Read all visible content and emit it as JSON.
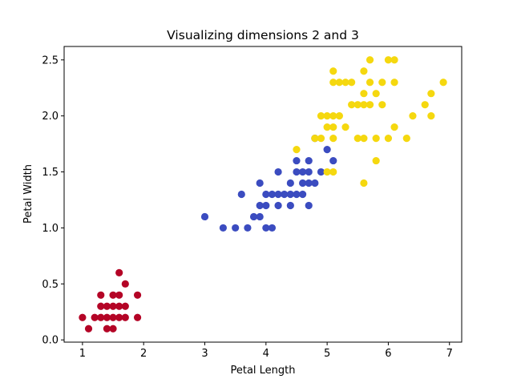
{
  "chart_data": {
    "type": "scatter",
    "title": "Visualizing dimensions 2 and 3",
    "xlabel": "Petal Length",
    "ylabel": "Petal Width",
    "xlim": [
      0.7,
      7.2
    ],
    "ylim": [
      -0.02,
      2.62
    ],
    "xticks": [
      1,
      2,
      3,
      4,
      5,
      6,
      7
    ],
    "yticks": [
      0.0,
      0.5,
      1.0,
      1.5,
      2.0,
      2.5
    ],
    "xtick_labels": [
      "1",
      "2",
      "3",
      "4",
      "5",
      "6",
      "7"
    ],
    "ytick_labels": [
      "0.0",
      "0.5",
      "1.0",
      "1.5",
      "2.0",
      "2.5"
    ],
    "grid": false,
    "legend": "none",
    "series": [
      {
        "color": "#b40426",
        "points": [
          [
            1.0,
            0.2
          ],
          [
            1.1,
            0.1
          ],
          [
            1.2,
            0.2
          ],
          [
            1.3,
            0.2
          ],
          [
            1.3,
            0.3
          ],
          [
            1.3,
            0.4
          ],
          [
            1.4,
            0.1
          ],
          [
            1.4,
            0.2
          ],
          [
            1.4,
            0.3
          ],
          [
            1.5,
            0.1
          ],
          [
            1.5,
            0.2
          ],
          [
            1.5,
            0.4
          ],
          [
            1.6,
            0.2
          ],
          [
            1.6,
            0.4
          ],
          [
            1.6,
            0.6
          ],
          [
            1.7,
            0.2
          ],
          [
            1.7,
            0.3
          ],
          [
            1.7,
            0.5
          ],
          [
            1.9,
            0.2
          ],
          [
            1.9,
            0.4
          ],
          [
            1.5,
            0.3
          ],
          [
            1.6,
            0.3
          ]
        ]
      },
      {
        "color": "#3b4cc0",
        "points": [
          [
            3.0,
            1.1
          ],
          [
            3.3,
            1.0
          ],
          [
            3.5,
            1.0
          ],
          [
            3.6,
            1.3
          ],
          [
            3.7,
            1.0
          ],
          [
            3.8,
            1.1
          ],
          [
            3.9,
            1.1
          ],
          [
            3.9,
            1.2
          ],
          [
            3.9,
            1.4
          ],
          [
            4.0,
            1.0
          ],
          [
            4.0,
            1.2
          ],
          [
            4.0,
            1.3
          ],
          [
            4.1,
            1.0
          ],
          [
            4.1,
            1.3
          ],
          [
            4.2,
            1.2
          ],
          [
            4.2,
            1.3
          ],
          [
            4.2,
            1.5
          ],
          [
            4.3,
            1.3
          ],
          [
            4.4,
            1.2
          ],
          [
            4.4,
            1.3
          ],
          [
            4.4,
            1.4
          ],
          [
            4.5,
            1.3
          ],
          [
            4.5,
            1.5
          ],
          [
            4.5,
            1.6
          ],
          [
            4.6,
            1.3
          ],
          [
            4.6,
            1.4
          ],
          [
            4.6,
            1.5
          ],
          [
            4.7,
            1.2
          ],
          [
            4.7,
            1.4
          ],
          [
            4.7,
            1.5
          ],
          [
            4.7,
            1.6
          ],
          [
            4.8,
            1.4
          ],
          [
            4.8,
            1.8
          ],
          [
            4.9,
            1.5
          ],
          [
            5.0,
            1.7
          ],
          [
            5.1,
            1.6
          ]
        ]
      },
      {
        "color": "#f5d80f",
        "points": [
          [
            4.5,
            1.7
          ],
          [
            4.8,
            1.8
          ],
          [
            4.9,
            1.8
          ],
          [
            4.9,
            2.0
          ],
          [
            5.0,
            1.5
          ],
          [
            5.0,
            1.9
          ],
          [
            5.0,
            2.0
          ],
          [
            5.1,
            1.5
          ],
          [
            5.1,
            1.8
          ],
          [
            5.1,
            1.9
          ],
          [
            5.1,
            2.0
          ],
          [
            5.1,
            2.3
          ],
          [
            5.1,
            2.4
          ],
          [
            5.2,
            2.0
          ],
          [
            5.2,
            2.3
          ],
          [
            5.3,
            1.9
          ],
          [
            5.3,
            2.3
          ],
          [
            5.4,
            2.1
          ],
          [
            5.4,
            2.3
          ],
          [
            5.5,
            1.8
          ],
          [
            5.5,
            2.1
          ],
          [
            5.6,
            1.4
          ],
          [
            5.6,
            1.8
          ],
          [
            5.6,
            2.1
          ],
          [
            5.6,
            2.2
          ],
          [
            5.6,
            2.4
          ],
          [
            5.7,
            2.1
          ],
          [
            5.7,
            2.3
          ],
          [
            5.7,
            2.5
          ],
          [
            5.8,
            1.6
          ],
          [
            5.8,
            1.8
          ],
          [
            5.8,
            2.2
          ],
          [
            5.9,
            2.1
          ],
          [
            5.9,
            2.3
          ],
          [
            6.0,
            1.8
          ],
          [
            6.0,
            2.5
          ],
          [
            6.1,
            1.9
          ],
          [
            6.1,
            2.3
          ],
          [
            6.1,
            2.5
          ],
          [
            6.3,
            1.8
          ],
          [
            6.4,
            2.0
          ],
          [
            6.6,
            2.1
          ],
          [
            6.7,
            2.0
          ],
          [
            6.7,
            2.2
          ],
          [
            6.9,
            2.3
          ]
        ]
      }
    ]
  }
}
